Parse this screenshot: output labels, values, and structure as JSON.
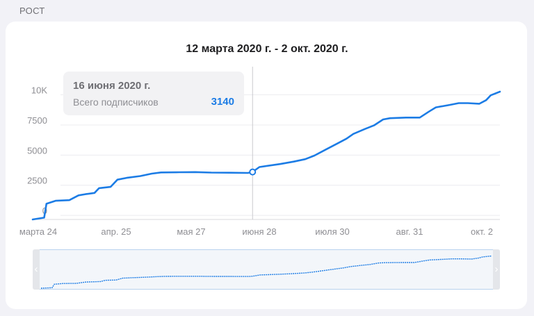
{
  "section_label": "РОСТ",
  "colors": {
    "line": "#1c7ce5",
    "grid": "#ececef",
    "axis_text": "#8e8e93"
  },
  "chart_data": {
    "type": "line",
    "title": "12 марта 2020 г. - 2 окт. 2020 г.",
    "x_start": "2020-03-12",
    "x_end": "2020-10-02",
    "x_tick_labels": [
      "марта 24",
      "апр. 25",
      "мая 27",
      "июня 28",
      "июля 30",
      "авг. 31",
      "окт. 2"
    ],
    "y_tick_labels": [
      "0",
      "2500",
      "5000",
      "7500",
      "10K"
    ],
    "ylim": [
      -800,
      11300
    ],
    "grid": true,
    "series": [
      {
        "points": [
          [
            "2020-03-12",
            -800
          ],
          [
            "2020-03-17",
            -650
          ],
          [
            "2020-03-18",
            500
          ],
          [
            "2020-03-22",
            750
          ],
          [
            "2020-03-28",
            800
          ],
          [
            "2020-04-01",
            1200
          ],
          [
            "2020-04-04",
            1300
          ],
          [
            "2020-04-08",
            1400
          ],
          [
            "2020-04-10",
            1800
          ],
          [
            "2020-04-15",
            1900
          ],
          [
            "2020-04-18",
            2500
          ],
          [
            "2020-04-22",
            2650
          ],
          [
            "2020-04-28",
            2800
          ],
          [
            "2020-05-03",
            3000
          ],
          [
            "2020-05-07",
            3100
          ],
          [
            "2020-05-15",
            3120
          ],
          [
            "2020-05-22",
            3130
          ],
          [
            "2020-05-29",
            3090
          ],
          [
            "2020-06-06",
            3080
          ],
          [
            "2020-06-14",
            3060
          ],
          [
            "2020-06-16",
            3140
          ],
          [
            "2020-06-19",
            3550
          ],
          [
            "2020-06-28",
            3800
          ],
          [
            "2020-07-04",
            4000
          ],
          [
            "2020-07-09",
            4200
          ],
          [
            "2020-07-13",
            4500
          ],
          [
            "2020-07-18",
            5000
          ],
          [
            "2020-07-23",
            5500
          ],
          [
            "2020-07-27",
            5900
          ],
          [
            "2020-07-30",
            6300
          ],
          [
            "2020-08-04",
            6700
          ],
          [
            "2020-08-08",
            7000
          ],
          [
            "2020-08-12",
            7500
          ],
          [
            "2020-08-15",
            7600
          ],
          [
            "2020-08-22",
            7650
          ],
          [
            "2020-08-28",
            7650
          ],
          [
            "2020-09-01",
            8150
          ],
          [
            "2020-09-04",
            8500
          ],
          [
            "2020-09-10",
            8700
          ],
          [
            "2020-09-14",
            8850
          ],
          [
            "2020-09-18",
            8850
          ],
          [
            "2020-09-23",
            8800
          ],
          [
            "2020-09-26",
            9100
          ],
          [
            "2020-09-28",
            9500
          ],
          [
            "2020-10-02",
            9800
          ]
        ]
      }
    ],
    "highlight": {
      "date": "2020-06-16",
      "value": 3140
    }
  },
  "tooltip": {
    "date": "16 июня 2020 г.",
    "label": "Всего подписчиков",
    "value": "3140"
  },
  "navigator": {
    "left_handle": "‹",
    "right_handle": "›"
  }
}
